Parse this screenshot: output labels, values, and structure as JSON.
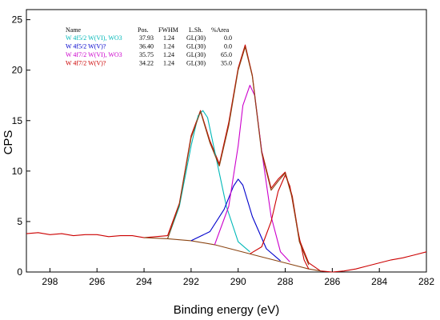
{
  "chart_data": {
    "type": "line",
    "xlabel": "Binding energy (eV)",
    "ylabel": "CPS",
    "xlim": [
      299,
      282
    ],
    "ylim": [
      0,
      26
    ],
    "x_ticks": [
      298,
      296,
      294,
      292,
      290,
      288,
      286,
      284,
      282
    ],
    "y_ticks": [
      0,
      5,
      10,
      15,
      20,
      25
    ],
    "x_reversed": true,
    "grid": false,
    "legend_table": {
      "headers": [
        "Name",
        "Pos.",
        "FWHM",
        "L.Sh.",
        "%Area"
      ],
      "rows": [
        {
          "name": "W 4f5/2 W(VI), WO3",
          "pos": "37.93",
          "fwhm": "1.24",
          "lsh": "GL(30)",
          "area": "0.0",
          "color": "#00b8b8"
        },
        {
          "name": "W 4f5/2 W(V)?",
          "pos": "36.40",
          "fwhm": "1.24",
          "lsh": "GL(30)",
          "area": "0.0",
          "color": "#0000cc"
        },
        {
          "name": "W 4f7/2 W(VI), WO3",
          "pos": "35.75",
          "fwhm": "1.24",
          "lsh": "GL(30)",
          "area": "65.0",
          "color": "#cc00cc"
        },
        {
          "name": "W 4f7/2 W(V)?",
          "pos": "34.22",
          "fwhm": "1.24",
          "lsh": "GL(30)",
          "area": "35.0",
          "color": "#cc0000"
        }
      ]
    },
    "series": [
      {
        "color": "#cc0000",
        "x": [
          299,
          298.5,
          298,
          297.5,
          297,
          296.5,
          296,
          295.5,
          295,
          294.5,
          294,
          293.5,
          293,
          292.5,
          292,
          291.6,
          291.2,
          290.8,
          290.4,
          290.0,
          289.7,
          289.4,
          289.0,
          288.6,
          288.3,
          288.0,
          287.7,
          287.4,
          287.0,
          286.5,
          286.0,
          285.5,
          285.0,
          284.5,
          284.0,
          283.5,
          283.0,
          282.5,
          282.0
        ],
        "y": [
          3.8,
          3.9,
          3.7,
          3.8,
          3.6,
          3.7,
          3.7,
          3.5,
          3.6,
          3.6,
          3.4,
          3.5,
          3.6,
          6.8,
          13.5,
          16.0,
          13.0,
          10.7,
          14.8,
          20.2,
          22.5,
          19.5,
          12.0,
          8.3,
          9.2,
          9.9,
          7.5,
          3.2,
          0.9,
          0.1,
          0.0,
          0.1,
          0.3,
          0.6,
          0.9,
          1.2,
          1.4,
          1.7,
          2.0
        ]
      },
      {
        "color": "#8b4513",
        "x": [
          294.0,
          293.0,
          292.0,
          291.0,
          290.0,
          289.0,
          288.0,
          287.0,
          286.5
        ],
        "y": [
          3.4,
          3.3,
          3.1,
          2.7,
          2.1,
          1.5,
          0.9,
          0.3,
          0.1
        ]
      },
      {
        "color": "#00b8b8",
        "x": [
          293.0,
          292.5,
          292.0,
          291.7,
          291.5,
          291.3,
          291.0,
          290.5,
          290.0,
          289.5
        ],
        "y": [
          3.3,
          6.5,
          12.5,
          15.5,
          16.0,
          15.3,
          12.0,
          6.5,
          3.0,
          2.0
        ]
      },
      {
        "color": "#0000cc",
        "x": [
          292.0,
          291.2,
          290.6,
          290.2,
          290.0,
          289.8,
          289.4,
          288.8,
          288.2
        ],
        "y": [
          3.1,
          4.0,
          6.2,
          8.5,
          9.2,
          8.6,
          5.5,
          2.3,
          1.1
        ]
      },
      {
        "color": "#cc00cc",
        "x": [
          291.0,
          290.4,
          290.0,
          289.8,
          289.5,
          289.3,
          289.0,
          288.6,
          288.2,
          287.8
        ],
        "y": [
          2.7,
          6.5,
          12.5,
          16.5,
          18.5,
          17.5,
          12.0,
          5.5,
          2.0,
          1.0
        ]
      },
      {
        "color": "#cc0000",
        "x": [
          289.5,
          289.0,
          288.6,
          288.3,
          288.0,
          287.8,
          287.5,
          287.2,
          287.0
        ],
        "y": [
          1.8,
          2.5,
          5.0,
          8.0,
          9.6,
          8.5,
          4.5,
          1.2,
          0.3
        ]
      },
      {
        "color": "#8b4513",
        "x": [
          293.0,
          292.5,
          292.0,
          291.6,
          291.2,
          290.8,
          290.4,
          290.0,
          289.7,
          289.4,
          289.0,
          288.6,
          288.3,
          288.0,
          287.7,
          287.4,
          287.0
        ],
        "y": [
          3.3,
          6.7,
          13.3,
          15.9,
          12.8,
          10.5,
          14.5,
          20.0,
          22.3,
          19.4,
          11.8,
          8.1,
          9.0,
          9.8,
          7.3,
          3.0,
          0.7
        ]
      }
    ]
  }
}
